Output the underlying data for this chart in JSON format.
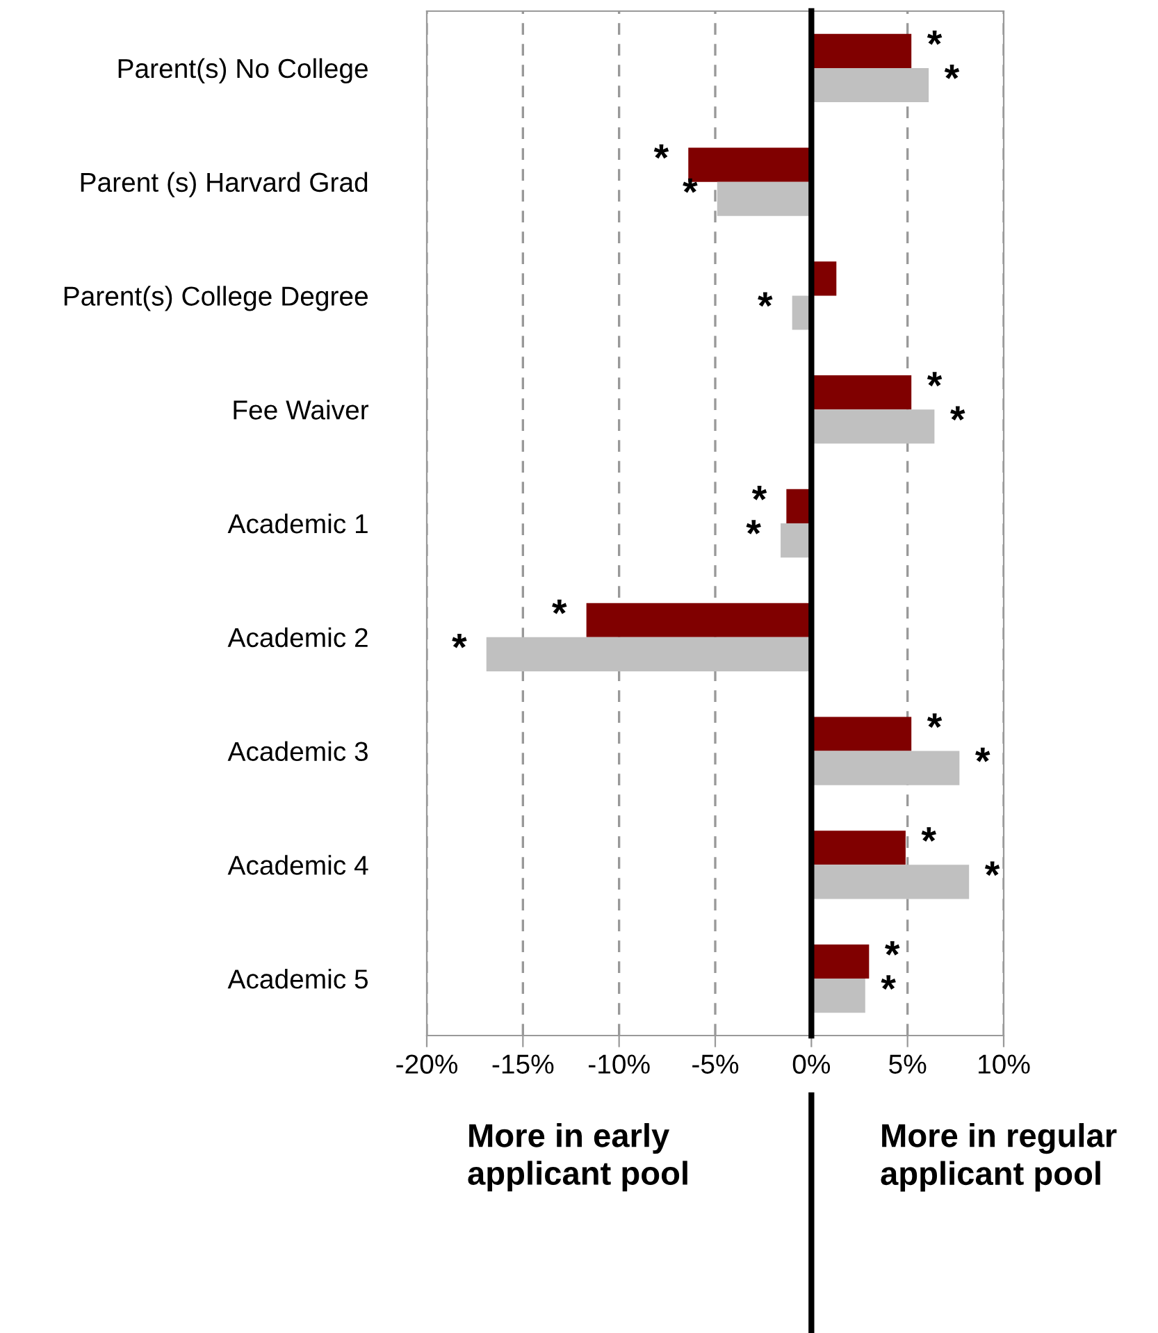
{
  "chart_data": {
    "type": "bar",
    "orientation": "horizontal",
    "categories": [
      "Parent(s) No College",
      "Parent (s) Harvard Grad",
      "Parent(s) College Degree",
      "Fee Waiver",
      "Academic 1",
      "Academic 2",
      "Academic 3",
      "Academic 4",
      "Academic 5"
    ],
    "series": [
      {
        "color": "#800000",
        "values": [
          5.2,
          -6.4,
          1.3,
          5.2,
          -1.3,
          -11.7,
          5.2,
          4.9,
          3.0
        ],
        "value_labels": [
          "*",
          "*",
          null,
          "*",
          "*",
          "*",
          "*",
          "*",
          "*"
        ]
      },
      {
        "color": "#c0c0c0",
        "values": [
          6.1,
          -4.9,
          -1.0,
          6.4,
          -1.6,
          -16.9,
          7.7,
          8.2,
          2.8
        ],
        "value_labels": [
          "*",
          "*",
          "*",
          "*",
          "*",
          "*",
          "*",
          "*",
          "*"
        ]
      }
    ],
    "xlim": [
      -20,
      10
    ],
    "xticks": [
      {
        "value": -20,
        "label": "-20%"
      },
      {
        "value": -15,
        "label": "-15%"
      },
      {
        "value": -10,
        "label": "-10%"
      },
      {
        "value": -5,
        "label": "-5%"
      },
      {
        "value": 0,
        "label": "0%"
      },
      {
        "value": 5,
        "label": "5%"
      },
      {
        "value": 10,
        "label": "10%"
      }
    ],
    "grid": "x",
    "ref_lines": [
      {
        "axis": "x",
        "value": 0,
        "color": "#000000"
      }
    ],
    "annotations": [
      "More in early\napplicant pool",
      "More in regular\napplicant pool"
    ]
  }
}
